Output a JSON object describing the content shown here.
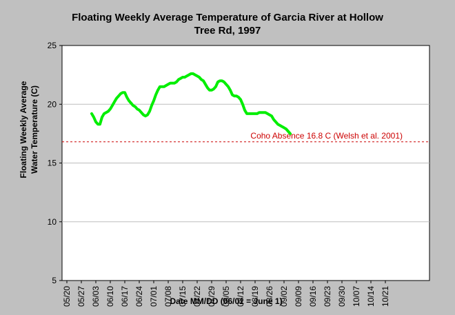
{
  "chart_data": {
    "type": "line",
    "title_lines": [
      "Floating Weekly Average Temperature of Garcia River at Hollow",
      "Tree Rd, 1997"
    ],
    "xlabel": "Date MM/DD (06/01 = June 1)",
    "ylabel_lines": [
      "Floating Weekly Average",
      "Water Temperature (C)"
    ],
    "x_ticks": [
      "05/20",
      "05/27",
      "06/03",
      "06/10",
      "06/17",
      "06/24",
      "07/01",
      "07/08",
      "07/15",
      "07/22",
      "07/29",
      "08/05",
      "08/12",
      "08/19",
      "08/26",
      "09/02",
      "09/09",
      "09/16",
      "09/23",
      "09/30",
      "10/07",
      "10/14",
      "10/21"
    ],
    "y_ticks": [
      5,
      10,
      15,
      20,
      25
    ],
    "ylim": [
      5,
      25
    ],
    "grid": true,
    "reference_line": {
      "y": 16.8,
      "label": "Coho Absence 16.8 C (Welsh et al. 2001)",
      "color": "#cc0000"
    },
    "series_color": "#00ee00",
    "series": [
      {
        "values": [
          [
            "06/01",
            19.2
          ],
          [
            "06/02",
            18.9
          ],
          [
            "06/03",
            18.5
          ],
          [
            "06/04",
            18.3
          ],
          [
            "06/05",
            18.3
          ],
          [
            "06/06",
            18.9
          ],
          [
            "06/07",
            19.2
          ],
          [
            "06/08",
            19.3
          ],
          [
            "06/09",
            19.4
          ],
          [
            "06/10",
            19.6
          ],
          [
            "06/11",
            19.9
          ],
          [
            "06/12",
            20.2
          ],
          [
            "06/13",
            20.5
          ],
          [
            "06/14",
            20.7
          ],
          [
            "06/15",
            20.9
          ],
          [
            "06/16",
            21.0
          ],
          [
            "06/17",
            21.0
          ],
          [
            "06/18",
            20.6
          ],
          [
            "06/19",
            20.3
          ],
          [
            "06/20",
            20.1
          ],
          [
            "06/21",
            19.9
          ],
          [
            "06/22",
            19.8
          ],
          [
            "06/23",
            19.6
          ],
          [
            "06/24",
            19.5
          ],
          [
            "06/25",
            19.3
          ],
          [
            "06/26",
            19.1
          ],
          [
            "06/27",
            19.0
          ],
          [
            "06/28",
            19.1
          ],
          [
            "06/29",
            19.4
          ],
          [
            "06/30",
            19.9
          ],
          [
            "07/01",
            20.3
          ],
          [
            "07/02",
            20.8
          ],
          [
            "07/03",
            21.2
          ],
          [
            "07/04",
            21.5
          ],
          [
            "07/05",
            21.5
          ],
          [
            "07/06",
            21.5
          ],
          [
            "07/07",
            21.6
          ],
          [
            "07/08",
            21.7
          ],
          [
            "07/09",
            21.8
          ],
          [
            "07/10",
            21.8
          ],
          [
            "07/11",
            21.8
          ],
          [
            "07/12",
            21.9
          ],
          [
            "07/13",
            22.1
          ],
          [
            "07/14",
            22.2
          ],
          [
            "07/15",
            22.3
          ],
          [
            "07/16",
            22.3
          ],
          [
            "07/17",
            22.4
          ],
          [
            "07/18",
            22.5
          ],
          [
            "07/19",
            22.6
          ],
          [
            "07/20",
            22.6
          ],
          [
            "07/21",
            22.5
          ],
          [
            "07/22",
            22.4
          ],
          [
            "07/23",
            22.3
          ],
          [
            "07/24",
            22.1
          ],
          [
            "07/25",
            22.0
          ],
          [
            "07/26",
            21.7
          ],
          [
            "07/27",
            21.4
          ],
          [
            "07/28",
            21.2
          ],
          [
            "07/29",
            21.2
          ],
          [
            "07/30",
            21.3
          ],
          [
            "07/31",
            21.5
          ],
          [
            "08/01",
            21.9
          ],
          [
            "08/02",
            22.0
          ],
          [
            "08/03",
            22.0
          ],
          [
            "08/04",
            21.9
          ],
          [
            "08/05",
            21.7
          ],
          [
            "08/06",
            21.5
          ],
          [
            "08/07",
            21.2
          ],
          [
            "08/08",
            20.8
          ],
          [
            "08/09",
            20.7
          ],
          [
            "08/10",
            20.7
          ],
          [
            "08/11",
            20.6
          ],
          [
            "08/12",
            20.4
          ],
          [
            "08/13",
            20.0
          ],
          [
            "08/14",
            19.5
          ],
          [
            "08/15",
            19.2
          ],
          [
            "08/16",
            19.2
          ],
          [
            "08/17",
            19.2
          ],
          [
            "08/18",
            19.2
          ],
          [
            "08/19",
            19.2
          ],
          [
            "08/20",
            19.2
          ],
          [
            "08/21",
            19.3
          ],
          [
            "08/22",
            19.3
          ],
          [
            "08/23",
            19.3
          ],
          [
            "08/24",
            19.3
          ],
          [
            "08/25",
            19.2
          ],
          [
            "08/26",
            19.1
          ],
          [
            "08/27",
            19.0
          ],
          [
            "08/28",
            18.7
          ],
          [
            "08/29",
            18.5
          ],
          [
            "08/30",
            18.3
          ],
          [
            "08/31",
            18.2
          ],
          [
            "09/01",
            18.1
          ],
          [
            "09/02",
            18.0
          ],
          [
            "09/03",
            17.9
          ],
          [
            "09/04",
            17.7
          ],
          [
            "09/05",
            17.5
          ]
        ]
      }
    ]
  }
}
